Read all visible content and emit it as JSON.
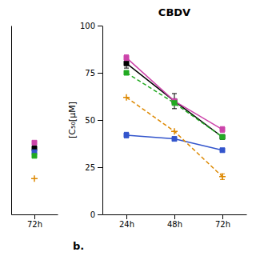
{
  "chart_data": [
    {
      "type": "line",
      "categories": [
        "72h"
      ],
      "ylim": [
        0,
        100
      ],
      "tick_labels": "x",
      "series": [
        {
          "color": "#cc44aa",
          "line_style": "solid",
          "marker": "square",
          "values": [
            38
          ]
        },
        {
          "color": "#000000",
          "line_style": "solid",
          "marker": "square",
          "values": [
            35
          ]
        },
        {
          "color": "#3355cc",
          "line_style": "solid",
          "marker": "square",
          "values": [
            33
          ]
        },
        {
          "color": "#22aa22",
          "line_style": "dashed",
          "marker": "square",
          "values": [
            31
          ]
        },
        {
          "color": "#dd8800",
          "line_style": "dashed",
          "marker": "plus",
          "values": [
            19
          ]
        }
      ]
    },
    {
      "type": "line",
      "title": "CBDV",
      "ylabel": "[C₅₀[µM]",
      "annotations": [
        "b."
      ],
      "categories": [
        "24h",
        "48h",
        "72h"
      ],
      "ylim": [
        0,
        100
      ],
      "yticks": [
        0,
        25,
        50,
        75,
        100
      ],
      "series": [
        {
          "color": "#000000",
          "line_style": "solid",
          "marker": "square",
          "values": [
            80,
            60,
            41
          ],
          "errors": [
            2.5,
            4.0,
            0
          ]
        },
        {
          "color": "#cc44aa",
          "line_style": "solid",
          "marker": "square",
          "values": [
            83,
            60,
            45
          ],
          "errors": [
            1.5,
            0,
            1.5
          ]
        },
        {
          "color": "#22aa22",
          "line_style": "dashed",
          "marker": "square",
          "values": [
            75,
            59,
            41
          ],
          "errors": [
            0,
            0,
            0
          ]
        },
        {
          "color": "#3355cc",
          "line_style": "solid",
          "marker": "square",
          "values": [
            42,
            40,
            34
          ],
          "errors": [
            1.5,
            0,
            0
          ]
        },
        {
          "color": "#dd8800",
          "line_style": "dashed",
          "marker": "plus",
          "values": [
            62,
            44,
            20
          ],
          "errors": [
            0,
            0,
            1.5
          ]
        }
      ]
    }
  ]
}
